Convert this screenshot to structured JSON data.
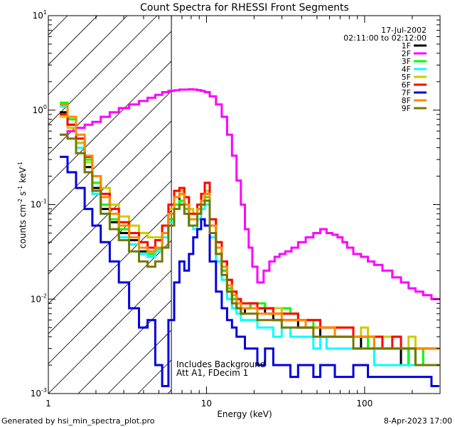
{
  "chart_data": {
    "type": "line",
    "title": "Count Spectra for RHESSI Front Segments",
    "xlabel": "Energy (keV)",
    "ylabel_parts": [
      "counts cm",
      "-2",
      " s",
      "-1",
      " keV",
      "-1"
    ],
    "xscale": "log",
    "yscale": "log",
    "xlim": [
      1,
      300
    ],
    "ylim": [
      0.001,
      10
    ],
    "x_ticks": [
      {
        "value": 1,
        "label": "1"
      },
      {
        "value": 10,
        "label": "10"
      },
      {
        "value": 100,
        "label": "100"
      }
    ],
    "y_ticks": [
      {
        "value": 0.001,
        "base": "10",
        "exp": "-3"
      },
      {
        "value": 0.01,
        "base": "10",
        "exp": "-2"
      },
      {
        "value": 0.1,
        "base": "10",
        "exp": "-1"
      },
      {
        "value": 1,
        "base": "10",
        "exp": "0"
      },
      {
        "value": 10,
        "base": "10",
        "exp": "1"
      }
    ],
    "date": "17-Jul-2002",
    "time_range": "02:11:00 to 02:12:00",
    "annotation_lines": [
      "Includes Background",
      "Att A1, FDecim 1"
    ],
    "attenuator_cutoff_kev": 6,
    "series": [
      {
        "name": "1F",
        "color": "#000000",
        "x": [
          1.25,
          1.4,
          1.6,
          1.8,
          2.0,
          2.3,
          2.6,
          3.0,
          3.5,
          4.0,
          4.5,
          5.0,
          5.5,
          6.0,
          6.5,
          7.0,
          7.5,
          8.0,
          8.5,
          9.0,
          9.5,
          10,
          11,
          12,
          13,
          14,
          15,
          16,
          17,
          18,
          20,
          22,
          25,
          28,
          32,
          36,
          40,
          45,
          50,
          55,
          60,
          70,
          80,
          90,
          100,
          110,
          120,
          140,
          160,
          180,
          200,
          220,
          250,
          280
        ],
        "y": [
          0.95,
          0.7,
          0.45,
          0.25,
          0.15,
          0.09,
          0.065,
          0.05,
          0.042,
          0.032,
          0.03,
          0.035,
          0.045,
          0.07,
          0.1,
          0.13,
          0.1,
          0.06,
          0.06,
          0.08,
          0.1,
          0.13,
          0.05,
          0.03,
          0.02,
          0.012,
          0.01,
          0.008,
          0.007,
          0.008,
          0.009,
          0.008,
          0.007,
          0.006,
          0.006,
          0.006,
          0.005,
          0.005,
          0.005,
          0.004,
          0.004,
          0.004,
          0.004,
          0.003,
          0.004,
          0.003,
          0.003,
          0.003,
          0.003,
          0.002,
          0.003,
          0.002,
          0.002,
          0.002
        ]
      },
      {
        "name": "2F",
        "color": "#ff00ff",
        "x": [
          1.25,
          1.4,
          1.6,
          1.8,
          2.0,
          2.3,
          2.6,
          3.0,
          3.5,
          4.0,
          4.5,
          5.0,
          5.5,
          6.0,
          6.5,
          7.0,
          7.5,
          8.0,
          8.5,
          9.0,
          9.5,
          10,
          11,
          12,
          13,
          14,
          15,
          16,
          17,
          18,
          19,
          20,
          22,
          24,
          26,
          28,
          30,
          33,
          36,
          40,
          45,
          50,
          55,
          60,
          65,
          70,
          75,
          80,
          90,
          100,
          110,
          120,
          140,
          160,
          180,
          200,
          220,
          250,
          280,
          300
        ],
        "y": [
          0.55,
          0.6,
          0.65,
          0.7,
          0.75,
          0.85,
          0.95,
          1.05,
          1.15,
          1.25,
          1.35,
          1.45,
          1.55,
          1.6,
          1.62,
          1.65,
          1.65,
          1.66,
          1.65,
          1.63,
          1.6,
          1.55,
          1.4,
          1.15,
          0.85,
          0.55,
          0.33,
          0.18,
          0.1,
          0.055,
          0.035,
          0.022,
          0.015,
          0.02,
          0.025,
          0.028,
          0.03,
          0.032,
          0.035,
          0.04,
          0.045,
          0.05,
          0.055,
          0.05,
          0.048,
          0.045,
          0.04,
          0.035,
          0.03,
          0.028,
          0.025,
          0.023,
          0.02,
          0.017,
          0.015,
          0.013,
          0.012,
          0.011,
          0.01,
          0.01
        ]
      },
      {
        "name": "3F",
        "color": "#00ff00",
        "x": [
          1.25,
          1.4,
          1.6,
          1.8,
          2.0,
          2.3,
          2.6,
          3.0,
          3.5,
          4.0,
          4.5,
          5.0,
          5.5,
          6.0,
          6.5,
          7.0,
          7.5,
          8.0,
          8.5,
          9.0,
          9.5,
          10,
          11,
          12,
          13,
          14,
          15,
          16,
          17,
          18,
          20,
          22,
          25,
          28,
          32,
          36,
          40,
          45,
          50,
          55,
          60,
          70,
          80,
          90,
          100,
          110,
          120,
          140,
          160,
          180,
          200,
          220,
          250,
          280
        ],
        "y": [
          1.2,
          0.8,
          0.5,
          0.3,
          0.17,
          0.1,
          0.07,
          0.055,
          0.045,
          0.035,
          0.03,
          0.034,
          0.05,
          0.07,
          0.1,
          0.11,
          0.09,
          0.07,
          0.07,
          0.09,
          0.11,
          0.12,
          0.05,
          0.03,
          0.02,
          0.013,
          0.01,
          0.009,
          0.008,
          0.008,
          0.009,
          0.009,
          0.008,
          0.007,
          0.008,
          0.007,
          0.006,
          0.006,
          0.005,
          0.005,
          0.005,
          0.004,
          0.004,
          0.004,
          0.004,
          0.003,
          0.004,
          0.003,
          0.003,
          0.003,
          0.002,
          0.003,
          0.002,
          0.002
        ]
      },
      {
        "name": "4F",
        "color": "#00ffff",
        "x": [
          1.25,
          1.4,
          1.6,
          1.8,
          2.0,
          2.3,
          2.6,
          3.0,
          3.5,
          4.0,
          4.5,
          5.0,
          5.5,
          6.0,
          6.5,
          7.0,
          7.5,
          8.0,
          8.5,
          9.0,
          9.5,
          10,
          11,
          12,
          13,
          14,
          15,
          16,
          17,
          18,
          20,
          22,
          25,
          28,
          32,
          36,
          40,
          45,
          50,
          55,
          60,
          70,
          80,
          90,
          100,
          110,
          120,
          140,
          160,
          180,
          200,
          220,
          250,
          280
        ],
        "y": [
          1.1,
          0.7,
          0.4,
          0.22,
          0.13,
          0.08,
          0.055,
          0.045,
          0.038,
          0.03,
          0.028,
          0.032,
          0.045,
          0.065,
          0.09,
          0.1,
          0.08,
          0.06,
          0.055,
          0.07,
          0.09,
          0.1,
          0.045,
          0.025,
          0.016,
          0.01,
          0.008,
          0.007,
          0.006,
          0.006,
          0.006,
          0.005,
          0.005,
          0.004,
          0.005,
          0.004,
          0.004,
          0.004,
          0.003,
          0.004,
          0.003,
          0.003,
          0.003,
          0.003,
          0.003,
          0.003,
          0.002,
          0.002,
          0.002,
          0.002,
          0.002,
          0.002,
          0.002,
          0.002
        ]
      },
      {
        "name": "5F",
        "color": "#cccc00",
        "x": [
          1.25,
          1.4,
          1.6,
          1.8,
          2.0,
          2.3,
          2.6,
          3.0,
          3.5,
          4.0,
          4.5,
          5.0,
          5.5,
          6.0,
          6.5,
          7.0,
          7.5,
          8.0,
          8.5,
          9.0,
          9.5,
          10,
          11,
          12,
          13,
          14,
          15,
          16,
          17,
          18,
          20,
          22,
          25,
          28,
          32,
          36,
          40,
          45,
          50,
          55,
          60,
          70,
          80,
          90,
          100,
          110,
          120,
          140,
          160,
          180,
          200,
          220,
          250,
          280
        ],
        "y": [
          0.85,
          0.65,
          0.45,
          0.28,
          0.2,
          0.15,
          0.1,
          0.075,
          0.06,
          0.05,
          0.045,
          0.045,
          0.06,
          0.09,
          0.12,
          0.14,
          0.12,
          0.09,
          0.08,
          0.1,
          0.12,
          0.14,
          0.07,
          0.04,
          0.025,
          0.016,
          0.012,
          0.01,
          0.009,
          0.009,
          0.009,
          0.008,
          0.008,
          0.008,
          0.007,
          0.007,
          0.006,
          0.006,
          0.006,
          0.005,
          0.005,
          0.005,
          0.005,
          0.004,
          0.005,
          0.004,
          0.004,
          0.004,
          0.004,
          0.003,
          0.004,
          0.003,
          0.003,
          0.003
        ]
      },
      {
        "name": "6F",
        "color": "#ff0000",
        "x": [
          1.25,
          1.4,
          1.6,
          1.8,
          2.0,
          2.3,
          2.6,
          3.0,
          3.5,
          4.0,
          4.5,
          5.0,
          5.5,
          6.0,
          6.5,
          7.0,
          7.5,
          8.0,
          8.5,
          9.0,
          9.5,
          10,
          11,
          12,
          13,
          14,
          15,
          16,
          17,
          18,
          20,
          22,
          25,
          28,
          32,
          36,
          40,
          45,
          50,
          55,
          60,
          70,
          80,
          90,
          100,
          110,
          120,
          140,
          160,
          180,
          200,
          220,
          250,
          280
        ],
        "y": [
          0.9,
          0.7,
          0.5,
          0.32,
          0.2,
          0.13,
          0.09,
          0.065,
          0.05,
          0.04,
          0.035,
          0.042,
          0.06,
          0.1,
          0.14,
          0.15,
          0.12,
          0.08,
          0.08,
          0.1,
          0.13,
          0.17,
          0.07,
          0.04,
          0.025,
          0.016,
          0.012,
          0.01,
          0.009,
          0.009,
          0.009,
          0.008,
          0.008,
          0.007,
          0.007,
          0.007,
          0.006,
          0.006,
          0.006,
          0.005,
          0.005,
          0.005,
          0.005,
          0.004,
          0.004,
          0.004,
          0.004,
          0.003,
          0.004,
          0.003,
          0.003,
          0.003,
          0.003,
          0.003
        ]
      },
      {
        "name": "7F",
        "color": "#0000dd",
        "x": [
          1.25,
          1.4,
          1.6,
          1.8,
          2.0,
          2.3,
          2.6,
          3.0,
          3.5,
          4.0,
          4.5,
          5.0,
          5.5,
          6.0,
          6.5,
          7.0,
          7.5,
          8.0,
          8.5,
          9.0,
          9.5,
          10,
          11,
          12,
          13,
          14,
          15,
          16,
          17,
          18,
          20,
          22,
          25,
          28,
          32,
          36,
          40,
          45,
          50,
          55,
          60,
          70,
          80,
          90,
          100,
          110,
          120,
          140,
          160,
          180,
          200,
          220,
          250,
          280
        ],
        "y": [
          0.32,
          0.22,
          0.15,
          0.09,
          0.06,
          0.04,
          0.025,
          0.015,
          0.008,
          0.005,
          0.006,
          0.002,
          0.0012,
          0.006,
          0.015,
          0.025,
          0.02,
          0.03,
          0.045,
          0.055,
          0.07,
          0.06,
          0.025,
          0.012,
          0.008,
          0.006,
          0.005,
          0.004,
          0.004,
          0.003,
          0.003,
          0.002,
          0.003,
          0.002,
          0.002,
          0.0015,
          0.002,
          0.002,
          0.0015,
          0.002,
          0.002,
          0.0015,
          0.0015,
          0.002,
          0.002,
          0.0015,
          0.0015,
          0.0015,
          0.0015,
          0.0015,
          0.0015,
          0.0015,
          0.0015,
          0.0012
        ]
      },
      {
        "name": "8F",
        "color": "#ff8800",
        "x": [
          1.25,
          1.4,
          1.6,
          1.8,
          2.0,
          2.3,
          2.6,
          3.0,
          3.5,
          4.0,
          4.5,
          5.0,
          5.5,
          6.0,
          6.5,
          7.0,
          7.5,
          8.0,
          8.5,
          9.0,
          9.5,
          10,
          11,
          12,
          13,
          14,
          15,
          16,
          17,
          18,
          20,
          22,
          25,
          28,
          32,
          36,
          40,
          45,
          50,
          55,
          60,
          70,
          80,
          90,
          100,
          110,
          120,
          140,
          160,
          180,
          200,
          220,
          250,
          280
        ],
        "y": [
          1.15,
          0.85,
          0.55,
          0.33,
          0.2,
          0.12,
          0.08,
          0.06,
          0.045,
          0.035,
          0.032,
          0.035,
          0.05,
          0.08,
          0.12,
          0.13,
          0.1,
          0.07,
          0.07,
          0.09,
          0.11,
          0.13,
          0.06,
          0.035,
          0.022,
          0.014,
          0.011,
          0.009,
          0.008,
          0.008,
          0.008,
          0.007,
          0.007,
          0.007,
          0.006,
          0.006,
          0.006,
          0.005,
          0.005,
          0.005,
          0.005,
          0.004,
          0.004,
          0.004,
          0.004,
          0.004,
          0.003,
          0.003,
          0.003,
          0.003,
          0.003,
          0.003,
          0.003,
          0.003
        ]
      },
      {
        "name": "9F",
        "color": "#777700",
        "x": [
          1.25,
          1.4,
          1.6,
          1.8,
          2.0,
          2.3,
          2.6,
          3.0,
          3.5,
          4.0,
          4.5,
          5.0,
          5.5,
          6.0,
          6.5,
          7.0,
          7.5,
          8.0,
          8.5,
          9.0,
          9.5,
          10,
          11,
          12,
          13,
          14,
          15,
          16,
          17,
          18,
          20,
          22,
          25,
          28,
          32,
          36,
          40,
          45,
          50,
          55,
          60,
          70,
          80,
          90,
          100,
          110,
          120,
          140,
          160,
          180,
          200,
          220,
          250,
          280
        ],
        "y": [
          0.55,
          0.5,
          0.35,
          0.22,
          0.14,
          0.08,
          0.055,
          0.042,
          0.032,
          0.025,
          0.022,
          0.025,
          0.035,
          0.06,
          0.09,
          0.1,
          0.08,
          0.06,
          0.06,
          0.08,
          0.1,
          0.11,
          0.05,
          0.03,
          0.018,
          0.012,
          0.009,
          0.008,
          0.007,
          0.007,
          0.007,
          0.006,
          0.006,
          0.006,
          0.005,
          0.005,
          0.005,
          0.005,
          0.004,
          0.004,
          0.004,
          0.004,
          0.004,
          0.003,
          0.003,
          0.003,
          0.003,
          0.003,
          0.003,
          0.003,
          0.003,
          0.002,
          0.002,
          0.002
        ]
      }
    ]
  },
  "footer": {
    "generated_by": "Generated by hsi_min_spectra_plot.pro",
    "timestamp": "8-Apr-2023 17:00"
  }
}
